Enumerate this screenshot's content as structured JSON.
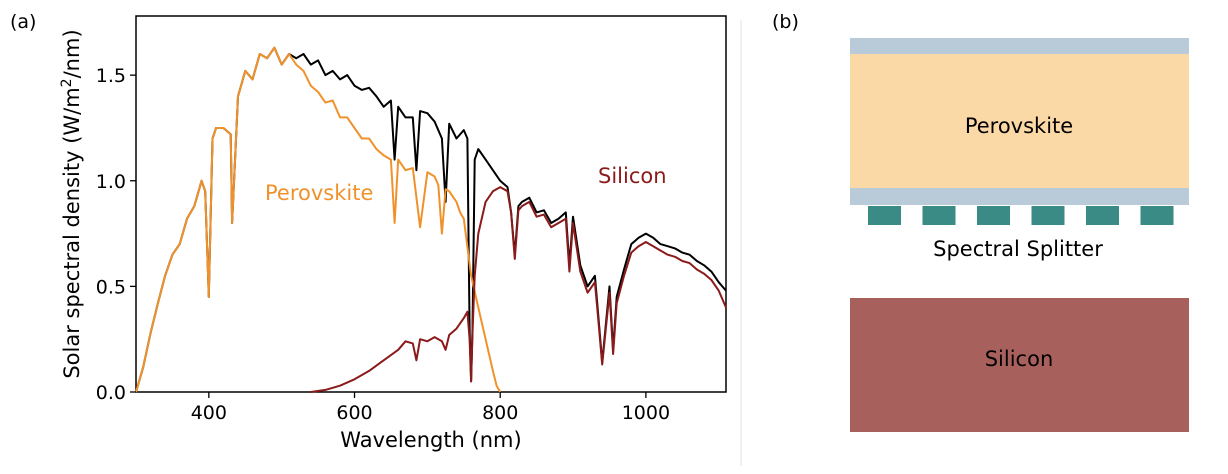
{
  "panel_a_label": "(a)",
  "panel_b_label": "(b)",
  "chart_data": {
    "type": "line",
    "xlabel": "Wavelength (nm)",
    "ylabel": "Solar spectral density (W/m²/nm)",
    "ylabel_main": "Solar spectral density (W/m",
    "ylabel_sup": "2",
    "ylabel_tail": "/nm)",
    "xlim": [
      300,
      1110
    ],
    "ylim": [
      0,
      1.78
    ],
    "xticks": [
      400,
      600,
      800,
      1000
    ],
    "yticks": [
      0.0,
      0.5,
      1.0,
      1.5
    ],
    "xtick_labels": [
      "400",
      "600",
      "800",
      "1000"
    ],
    "ytick_labels": [
      "0.0",
      "0.5",
      "1.0",
      "1.5"
    ],
    "grid": false,
    "annotations": [
      {
        "text": "Perovskite",
        "color": "#f0922b"
      },
      {
        "text": "Silicon",
        "color": "#8b1a1a"
      }
    ],
    "series": [
      {
        "color": "#000000",
        "x": [
          300,
          310,
          320,
          330,
          340,
          350,
          360,
          370,
          380,
          390,
          395,
          400,
          405,
          410,
          420,
          430,
          432,
          440,
          450,
          460,
          470,
          480,
          490,
          500,
          510,
          520,
          530,
          540,
          550,
          560,
          570,
          580,
          590,
          600,
          610,
          620,
          630,
          640,
          650,
          655,
          660,
          670,
          680,
          685,
          690,
          700,
          710,
          720,
          725,
          730,
          740,
          750,
          755,
          758,
          760,
          762,
          765,
          770,
          780,
          790,
          800,
          810,
          815,
          820,
          825,
          830,
          840,
          850,
          860,
          870,
          880,
          890,
          895,
          900,
          910,
          920,
          930,
          935,
          940,
          950,
          955,
          960,
          970,
          980,
          990,
          1000,
          1010,
          1020,
          1030,
          1040,
          1050,
          1060,
          1070,
          1080,
          1090,
          1100,
          1110
        ],
        "y": [
          0.0,
          0.12,
          0.28,
          0.42,
          0.55,
          0.65,
          0.7,
          0.82,
          0.88,
          1.0,
          0.95,
          0.45,
          1.2,
          1.25,
          1.25,
          1.22,
          0.8,
          1.4,
          1.52,
          1.48,
          1.6,
          1.58,
          1.63,
          1.55,
          1.6,
          1.58,
          1.6,
          1.55,
          1.57,
          1.5,
          1.52,
          1.48,
          1.5,
          1.45,
          1.43,
          1.44,
          1.4,
          1.35,
          1.38,
          1.1,
          1.35,
          1.3,
          1.3,
          1.05,
          1.33,
          1.32,
          1.28,
          1.2,
          0.9,
          1.27,
          1.2,
          1.24,
          1.2,
          0.3,
          0.05,
          0.3,
          1.1,
          1.15,
          1.1,
          1.05,
          1.0,
          0.97,
          0.85,
          0.65,
          0.88,
          0.9,
          0.92,
          0.85,
          0.86,
          0.8,
          0.82,
          0.85,
          0.6,
          0.83,
          0.6,
          0.5,
          0.55,
          0.35,
          0.14,
          0.5,
          0.2,
          0.45,
          0.58,
          0.7,
          0.73,
          0.75,
          0.73,
          0.7,
          0.69,
          0.68,
          0.66,
          0.65,
          0.62,
          0.6,
          0.57,
          0.52,
          0.48
        ]
      },
      {
        "name": "Perovskite",
        "color": "#f0922b",
        "x": [
          300,
          310,
          320,
          330,
          340,
          350,
          360,
          370,
          380,
          390,
          395,
          400,
          405,
          410,
          420,
          430,
          432,
          440,
          450,
          460,
          470,
          480,
          490,
          500,
          510,
          520,
          530,
          540,
          550,
          560,
          570,
          580,
          590,
          600,
          610,
          620,
          630,
          640,
          650,
          655,
          660,
          670,
          680,
          690,
          700,
          710,
          715,
          720,
          725,
          730,
          740,
          745,
          750,
          760,
          770,
          780,
          790,
          795,
          800
        ],
        "y": [
          0.0,
          0.12,
          0.28,
          0.42,
          0.55,
          0.65,
          0.7,
          0.82,
          0.88,
          1.0,
          0.95,
          0.45,
          1.2,
          1.25,
          1.25,
          1.22,
          0.8,
          1.4,
          1.52,
          1.48,
          1.6,
          1.58,
          1.63,
          1.55,
          1.6,
          1.55,
          1.52,
          1.45,
          1.42,
          1.37,
          1.38,
          1.3,
          1.3,
          1.25,
          1.2,
          1.2,
          1.15,
          1.12,
          1.1,
          0.8,
          1.1,
          1.05,
          1.06,
          0.78,
          1.04,
          1.02,
          0.98,
          0.75,
          0.96,
          0.95,
          0.9,
          0.85,
          0.82,
          0.55,
          0.4,
          0.25,
          0.1,
          0.03,
          0.0
        ]
      },
      {
        "name": "Silicon",
        "color": "#8b1a1a",
        "x": [
          540,
          560,
          580,
          600,
          620,
          640,
          660,
          670,
          680,
          685,
          690,
          700,
          710,
          720,
          725,
          730,
          740,
          750,
          755,
          758,
          760,
          762,
          765,
          770,
          780,
          790,
          800,
          810,
          815,
          820,
          825,
          830,
          840,
          850,
          860,
          870,
          880,
          890,
          895,
          900,
          910,
          920,
          930,
          935,
          940,
          950,
          955,
          960,
          970,
          980,
          990,
          1000,
          1010,
          1020,
          1030,
          1040,
          1050,
          1060,
          1070,
          1080,
          1090,
          1100,
          1110
        ],
        "y": [
          0.0,
          0.01,
          0.03,
          0.06,
          0.1,
          0.15,
          0.2,
          0.24,
          0.23,
          0.15,
          0.25,
          0.24,
          0.26,
          0.24,
          0.2,
          0.27,
          0.3,
          0.35,
          0.38,
          0.25,
          0.05,
          0.28,
          0.55,
          0.75,
          0.9,
          0.95,
          0.97,
          0.95,
          0.85,
          0.63,
          0.86,
          0.88,
          0.9,
          0.83,
          0.84,
          0.78,
          0.8,
          0.82,
          0.57,
          0.8,
          0.57,
          0.47,
          0.52,
          0.33,
          0.13,
          0.47,
          0.18,
          0.42,
          0.55,
          0.66,
          0.69,
          0.71,
          0.69,
          0.67,
          0.65,
          0.64,
          0.62,
          0.61,
          0.58,
          0.56,
          0.53,
          0.48,
          0.4
        ]
      }
    ]
  },
  "schematic": {
    "perovskite_label": "Perovskite",
    "splitter_label": "Spectral Splitter",
    "silicon_label": "Silicon",
    "splitter_blocks": 6,
    "colors": {
      "glass": "#b9cbd9",
      "perovskite": "#fbd9a7",
      "splitter": "#3a8b85",
      "silicon": "#a8605c"
    }
  }
}
